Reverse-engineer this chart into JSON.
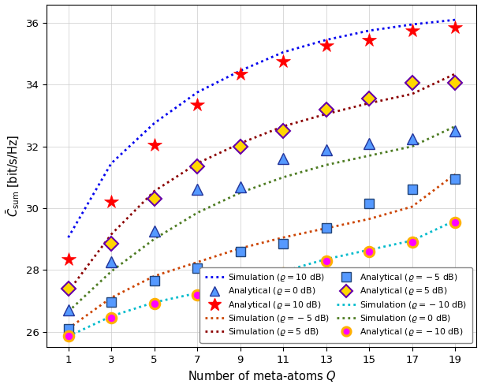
{
  "Q_values": [
    1,
    3,
    5,
    7,
    9,
    11,
    13,
    15,
    17,
    19
  ],
  "sim_10dB": [
    29.05,
    31.45,
    32.75,
    33.75,
    34.45,
    35.05,
    35.45,
    35.75,
    35.95,
    36.1
  ],
  "ana_10dB": [
    28.35,
    30.2,
    32.05,
    33.35,
    34.35,
    34.75,
    35.25,
    35.45,
    35.75,
    35.85
  ],
  "sim_5dB": [
    27.3,
    29.15,
    30.55,
    31.45,
    32.1,
    32.65,
    33.05,
    33.4,
    33.7,
    34.35
  ],
  "ana_5dB": [
    27.4,
    28.85,
    30.3,
    31.35,
    32.0,
    32.5,
    33.2,
    33.55,
    34.05,
    34.05
  ],
  "sim_0dB": [
    26.65,
    27.95,
    29.0,
    29.85,
    30.5,
    31.0,
    31.4,
    31.7,
    32.0,
    32.65
  ],
  "ana_0dB": [
    26.7,
    28.25,
    29.25,
    30.6,
    30.7,
    31.6,
    31.9,
    32.1,
    32.25,
    32.5
  ],
  "sim_m5dB": [
    26.1,
    27.1,
    27.8,
    28.25,
    28.7,
    29.05,
    29.35,
    29.65,
    30.05,
    31.1
  ],
  "ana_m5dB": [
    26.1,
    26.95,
    27.65,
    28.05,
    28.6,
    28.85,
    29.35,
    30.15,
    30.6,
    30.95
  ],
  "sim_m10dB": [
    25.85,
    26.5,
    26.95,
    27.25,
    27.6,
    27.95,
    28.35,
    28.65,
    28.95,
    29.6
  ],
  "ana_m10dB": [
    25.85,
    26.45,
    26.9,
    27.2,
    27.55,
    27.9,
    28.3,
    28.6,
    28.9,
    29.55
  ],
  "color_10dB": "#0000EE",
  "color_5dB": "#8B0000",
  "color_0dB": "#4E7C23",
  "color_m5dB": "#CC4400",
  "color_m10dB": "#00BBCC",
  "marker_color_10dB_face": "#FF0000",
  "marker_color_10dB_edge": "#FF0000",
  "marker_color_5dB_face": "#FFD700",
  "marker_color_5dB_edge": "#6600AA",
  "marker_color_0dB_face": "#5599FF",
  "marker_color_0dB_edge": "#223399",
  "marker_color_m5dB_face": "#5599FF",
  "marker_color_m5dB_edge": "#224477",
  "marker_color_m10dB_face": "#FF00FF",
  "marker_color_m10dB_edge": "#FFB000",
  "xlabel": "Number of meta-atoms $Q$",
  "ylabel": "$\\bar{C}_{\\mathrm{sum}}$ [bit/s/Hz]",
  "ylim": [
    25.5,
    36.6
  ],
  "xlim": [
    0.0,
    20.0
  ],
  "xticks": [
    1,
    3,
    5,
    7,
    9,
    11,
    13,
    15,
    17,
    19
  ],
  "yticks": [
    26,
    28,
    30,
    32,
    34,
    36
  ]
}
